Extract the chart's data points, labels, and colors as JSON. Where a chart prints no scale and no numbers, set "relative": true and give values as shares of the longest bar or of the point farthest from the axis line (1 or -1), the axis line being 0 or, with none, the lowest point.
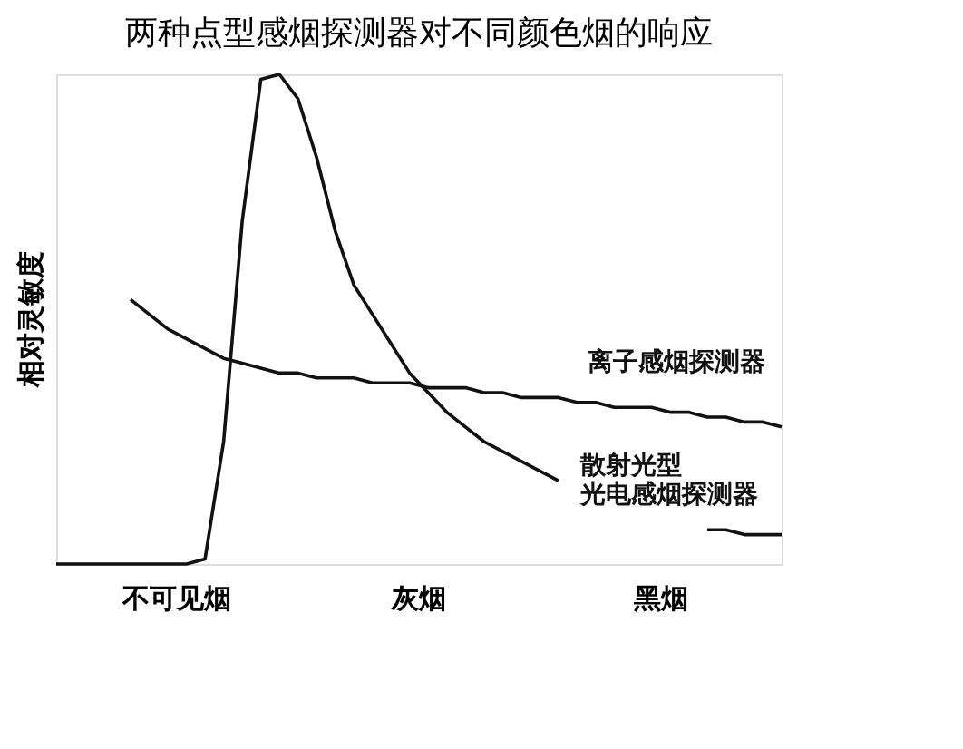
{
  "chart_data": {
    "type": "line",
    "title": "两种点型感烟探测器对不同颜色烟的响应",
    "ylabel": "相对灵敏度",
    "relative": true,
    "categories": [
      null,
      null,
      null,
      null,
      null,
      null,
      null,
      null,
      null,
      null,
      null,
      null,
      null,
      null,
      null,
      null,
      null,
      null,
      null,
      null,
      null,
      null,
      null,
      null,
      null,
      null,
      null,
      null,
      null,
      null,
      null,
      null,
      null,
      null,
      null,
      null,
      null,
      null,
      null,
      null
    ],
    "series": [
      {
        "name": "离子感烟探测器",
        "color": "#111111",
        "values": [
          null,
          null,
          null,
          null,
          0.54,
          0.51,
          0.48,
          0.46,
          0.44,
          0.42,
          0.41,
          0.4,
          0.39,
          0.39,
          0.38,
          0.38,
          0.38,
          0.37,
          0.37,
          0.37,
          0.36,
          0.36,
          0.36,
          0.35,
          0.35,
          0.34,
          0.34,
          0.34,
          0.33,
          0.33,
          0.32,
          0.32,
          0.32,
          0.31,
          0.31,
          0.3,
          0.3,
          0.29,
          0.29,
          0.28
        ]
      },
      {
        "name": "散射光型光电感烟探测器",
        "color": "#111111",
        "values": [
          0,
          0,
          0,
          0,
          0,
          0,
          0,
          0,
          0.01,
          0.25,
          0.7,
          0.99,
          1.0,
          0.95,
          0.83,
          0.68,
          0.57,
          0.51,
          0.45,
          0.39,
          0.35,
          0.31,
          0.28,
          0.25,
          0.23,
          0.21,
          0.19,
          0.17,
          null,
          null,
          null,
          null,
          null,
          null,
          null,
          0.07,
          0.07,
          0.06,
          0.06,
          0.06
        ]
      }
    ],
    "annotations": [
      "不可见烟",
      "灰烟",
      "黑烟"
    ],
    "grid": false,
    "legend": false,
    "marker": "none",
    "line_style": "solid"
  }
}
